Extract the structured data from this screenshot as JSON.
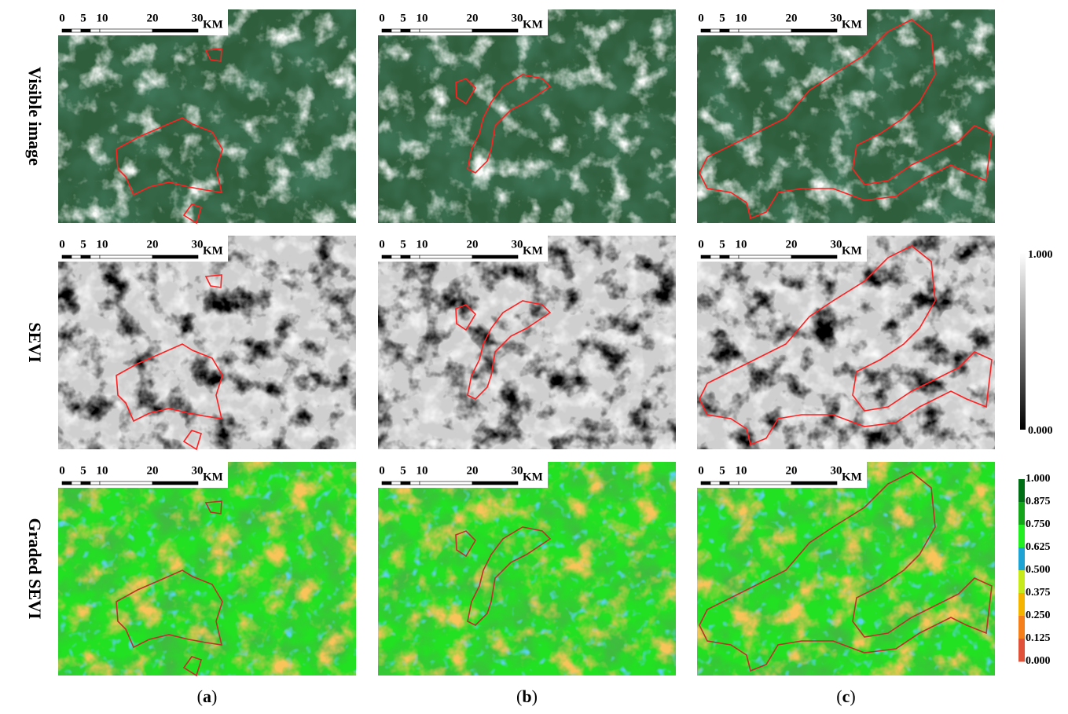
{
  "figure": {
    "row_labels": [
      "Visible image",
      "SEVI",
      "Graded SEVI"
    ],
    "column_labels": [
      {
        "open": "(",
        "letter": "a",
        "close": ")"
      },
      {
        "open": "(",
        "letter": "b",
        "close": ")"
      },
      {
        "open": "(",
        "letter": "c",
        "close": ")"
      }
    ],
    "scale_bar": {
      "ticks": [
        "0",
        "5",
        "10",
        "20",
        "30"
      ],
      "unit": "KM"
    },
    "sevi_colorbar": {
      "top": "1.000",
      "bottom": "0.000"
    },
    "graded_colorbar": {
      "labels": [
        "1.000",
        "0.875",
        "0.750",
        "0.625",
        "0.500",
        "0.375",
        "0.250",
        "0.125",
        "0.000"
      ]
    }
  }
}
